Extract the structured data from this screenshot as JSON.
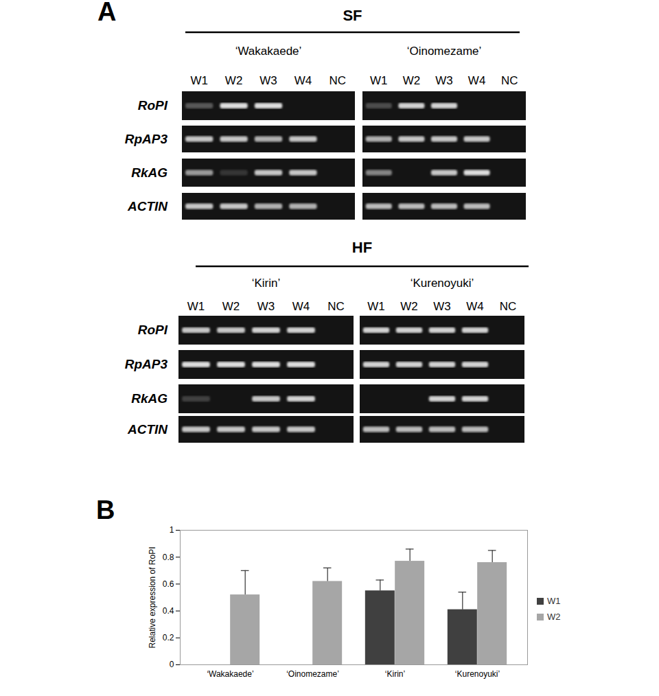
{
  "panel_a": {
    "label": "A",
    "genes": [
      "RoPI",
      "RpAP3",
      "RkAG",
      "ACTIN"
    ],
    "lanes": [
      "W1",
      "W2",
      "W3",
      "W4",
      "NC"
    ],
    "groups": [
      {
        "title": "SF",
        "cultivars": [
          {
            "name": "‘Wakakaede’",
            "band_intensity": [
              [
                0.3,
                0.9,
                0.9,
                0,
                0
              ],
              [
                0.8,
                0.8,
                0.7,
                0.8,
                0
              ],
              [
                0.6,
                0.15,
                0.8,
                0.8,
                0
              ],
              [
                0.8,
                0.8,
                0.7,
                0.7,
                0
              ]
            ]
          },
          {
            "name": "‘Oinomezame’",
            "band_intensity": [
              [
                0.25,
                0.85,
                0.85,
                0,
                0
              ],
              [
                0.7,
                0.8,
                0.8,
                0.8,
                0
              ],
              [
                0.5,
                0,
                0.8,
                0.9,
                0
              ],
              [
                0.75,
                0.75,
                0.75,
                0.75,
                0
              ]
            ]
          }
        ]
      },
      {
        "title": "HF",
        "cultivars": [
          {
            "name": "‘Kirin’",
            "band_intensity": [
              [
                0.8,
                0.8,
                0.85,
                0.85,
                0
              ],
              [
                0.9,
                0.9,
                0.9,
                0.9,
                0
              ],
              [
                0.2,
                0,
                0.8,
                0.85,
                0
              ],
              [
                0.8,
                0.8,
                0.8,
                0.8,
                0
              ]
            ]
          },
          {
            "name": "‘Kurenoyuki’",
            "band_intensity": [
              [
                0.85,
                0.85,
                0.85,
                0.85,
                0
              ],
              [
                0.85,
                0.85,
                0.85,
                0.85,
                0
              ],
              [
                0,
                0,
                0.85,
                0.85,
                0
              ],
              [
                0.75,
                0.75,
                0.75,
                0.75,
                0
              ]
            ]
          }
        ]
      }
    ]
  },
  "panel_b_label": "B",
  "chart_data": {
    "type": "bar",
    "categories": [
      "‘Wakakaede’",
      "‘Oinomezame’",
      "‘Kirin’",
      "‘Kurenoyuki’"
    ],
    "series": [
      {
        "name": "W1",
        "color": "#404040",
        "values": [
          null,
          null,
          0.55,
          0.41
        ],
        "errors": [
          null,
          null,
          0.08,
          0.13
        ]
      },
      {
        "name": "W2",
        "color": "#a6a6a6",
        "values": [
          0.52,
          0.62,
          0.77,
          0.76
        ],
        "errors": [
          0.18,
          0.1,
          0.09,
          0.09
        ]
      }
    ],
    "y_label": "Relative expression of RoPI",
    "ylim": [
      0,
      1
    ],
    "yticks": [
      0,
      0.2,
      0.4,
      0.6,
      0.8,
      1
    ],
    "legend": "right",
    "grid": false
  }
}
